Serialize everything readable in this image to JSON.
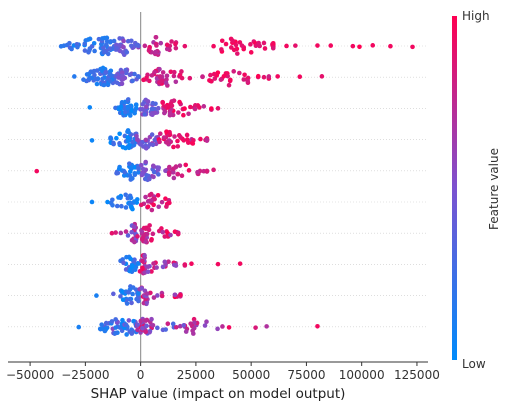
{
  "chart_data": {
    "type": "scatter",
    "title": "",
    "xlabel": "SHAP value (impact on model output)",
    "ylabel": "",
    "xlim": [
      -60000,
      130000
    ],
    "xticks": [
      -50000,
      -25000,
      0,
      25000,
      50000,
      75000,
      100000,
      125000
    ],
    "xtick_labels": [
      "−50000",
      "−25000",
      "0",
      "25000",
      "50000",
      "75000",
      "100000",
      "125000"
    ],
    "grid": false,
    "zero_line": 0,
    "colorbar": {
      "label": "Feature value",
      "high_label": "High",
      "low_label": "Low",
      "low_color": "#008bfb",
      "high_color": "#ff0052"
    },
    "rows": [
      {
        "clusters": [
          {
            "min": -38000,
            "max": -12000,
            "center": -18000,
            "n": 55,
            "lo": 0.05,
            "hi": 0.35
          },
          {
            "min": -12000,
            "max": -1000,
            "center": -8000,
            "n": 30,
            "lo": 0.3,
            "hi": 0.6
          },
          {
            "min": 1000,
            "max": 20000,
            "center": 8000,
            "n": 25,
            "lo": 0.65,
            "hi": 0.95
          },
          {
            "min": 33000,
            "max": 60000,
            "center": 45000,
            "n": 35,
            "lo": 0.85,
            "hi": 1.0
          }
        ],
        "outliers": [
          {
            "x": 20000,
            "c": 0.9
          },
          {
            "x": 33000,
            "c": 0.95
          },
          {
            "x": 66000,
            "c": 0.95
          },
          {
            "x": 70000,
            "c": 0.9
          },
          {
            "x": 80000,
            "c": 0.95
          },
          {
            "x": 86000,
            "c": 0.95
          },
          {
            "x": 96000,
            "c": 0.95
          },
          {
            "x": 99000,
            "c": 1.0
          },
          {
            "x": 105000,
            "c": 0.95
          },
          {
            "x": 113000,
            "c": 0.95
          },
          {
            "x": 123000,
            "c": 0.95
          }
        ]
      },
      {
        "clusters": [
          {
            "min": -30000,
            "max": -12000,
            "center": -17000,
            "n": 55,
            "lo": 0.05,
            "hi": 0.35
          },
          {
            "min": -12000,
            "max": -1000,
            "center": -8000,
            "n": 30,
            "lo": 0.25,
            "hi": 0.55
          },
          {
            "min": 1000,
            "max": 28000,
            "center": 10000,
            "n": 45,
            "lo": 0.65,
            "hi": 0.95
          },
          {
            "min": 28000,
            "max": 58000,
            "center": 40000,
            "n": 30,
            "lo": 0.8,
            "hi": 1.0
          }
        ],
        "outliers": [
          {
            "x": -30000,
            "c": 0.15
          },
          {
            "x": 62000,
            "c": 0.95
          },
          {
            "x": 72000,
            "c": 0.95
          },
          {
            "x": 82000,
            "c": 0.9
          }
        ]
      },
      {
        "clusters": [
          {
            "min": -12000,
            "max": -2000,
            "center": -6000,
            "n": 40,
            "lo": 0.0,
            "hi": 0.3
          },
          {
            "min": -2000,
            "max": 8000,
            "center": 3000,
            "n": 30,
            "lo": 0.3,
            "hi": 0.6
          },
          {
            "min": 8000,
            "max": 32000,
            "center": 14000,
            "n": 40,
            "lo": 0.7,
            "hi": 1.0
          }
        ],
        "outliers": [
          {
            "x": -23000,
            "c": 0.05
          },
          {
            "x": 35000,
            "c": 0.9
          }
        ]
      },
      {
        "clusters": [
          {
            "min": -17000,
            "max": -2000,
            "center": -6000,
            "n": 40,
            "lo": 0.0,
            "hi": 0.35
          },
          {
            "min": -2000,
            "max": 8000,
            "center": 3000,
            "n": 25,
            "lo": 0.35,
            "hi": 0.65
          },
          {
            "min": 8000,
            "max": 30000,
            "center": 14000,
            "n": 40,
            "lo": 0.7,
            "hi": 1.0
          }
        ],
        "outliers": [
          {
            "x": -22000,
            "c": 0.05
          }
        ]
      },
      {
        "clusters": [
          {
            "min": -12000,
            "max": -1000,
            "center": -5000,
            "n": 30,
            "lo": 0.0,
            "hi": 0.3
          },
          {
            "min": -1000,
            "max": 12000,
            "center": 3000,
            "n": 30,
            "lo": 0.3,
            "hi": 0.7
          },
          {
            "min": 12000,
            "max": 30000,
            "center": 17000,
            "n": 25,
            "lo": 0.7,
            "hi": 0.95
          }
        ],
        "outliers": [
          {
            "x": -47000,
            "c": 0.95
          },
          {
            "x": 33000,
            "c": 0.85
          }
        ]
      },
      {
        "clusters": [
          {
            "min": -18000,
            "max": -1000,
            "center": -5000,
            "n": 25,
            "lo": 0.0,
            "hi": 0.25
          },
          {
            "min": -1000,
            "max": 13000,
            "center": 6000,
            "n": 25,
            "lo": 0.6,
            "hi": 1.0
          }
        ],
        "outliers": [
          {
            "x": -22000,
            "c": 0.05
          },
          {
            "x": 13000,
            "c": 0.95
          }
        ]
      },
      {
        "clusters": [
          {
            "min": -12000,
            "max": -2000,
            "center": -3000,
            "n": 25,
            "lo": 0.35,
            "hi": 0.95
          },
          {
            "min": -2000,
            "max": 17000,
            "center": 3000,
            "n": 40,
            "lo": 0.6,
            "hi": 1.0
          }
        ],
        "outliers": [
          {
            "x": -13000,
            "c": 0.9
          }
        ]
      },
      {
        "clusters": [
          {
            "min": -10000,
            "max": -1000,
            "center": -5000,
            "n": 25,
            "lo": 0.0,
            "hi": 0.4
          },
          {
            "min": -1000,
            "max": 20000,
            "center": 2000,
            "n": 40,
            "lo": 0.5,
            "hi": 1.0
          }
        ],
        "outliers": [
          {
            "x": 20000,
            "c": 0.9
          },
          {
            "x": 23000,
            "c": 0.95
          },
          {
            "x": 35000,
            "c": 0.95
          },
          {
            "x": 45000,
            "c": 0.95
          }
        ]
      },
      {
        "clusters": [
          {
            "min": -15000,
            "max": -1000,
            "center": -5000,
            "n": 30,
            "lo": 0.0,
            "hi": 0.4
          },
          {
            "min": -1000,
            "max": 18000,
            "center": 3000,
            "n": 35,
            "lo": 0.5,
            "hi": 1.0
          }
        ],
        "outliers": [
          {
            "x": -20000,
            "c": 0.1
          },
          {
            "x": 18000,
            "c": 0.95
          }
        ]
      },
      {
        "clusters": [
          {
            "min": -22000,
            "max": -2000,
            "center": -8000,
            "n": 50,
            "lo": 0.0,
            "hi": 0.6
          },
          {
            "min": -2000,
            "max": 20000,
            "center": 3000,
            "n": 45,
            "lo": 0.3,
            "hi": 0.9
          },
          {
            "min": 20000,
            "max": 37000,
            "center": 25000,
            "n": 15,
            "lo": 0.55,
            "hi": 0.9
          }
        ],
        "outliers": [
          {
            "x": -28000,
            "c": 0.1
          },
          {
            "x": 40000,
            "c": 0.95
          },
          {
            "x": 52000,
            "c": 0.85
          },
          {
            "x": 57000,
            "c": 0.7
          },
          {
            "x": 80000,
            "c": 0.95
          }
        ]
      }
    ]
  }
}
